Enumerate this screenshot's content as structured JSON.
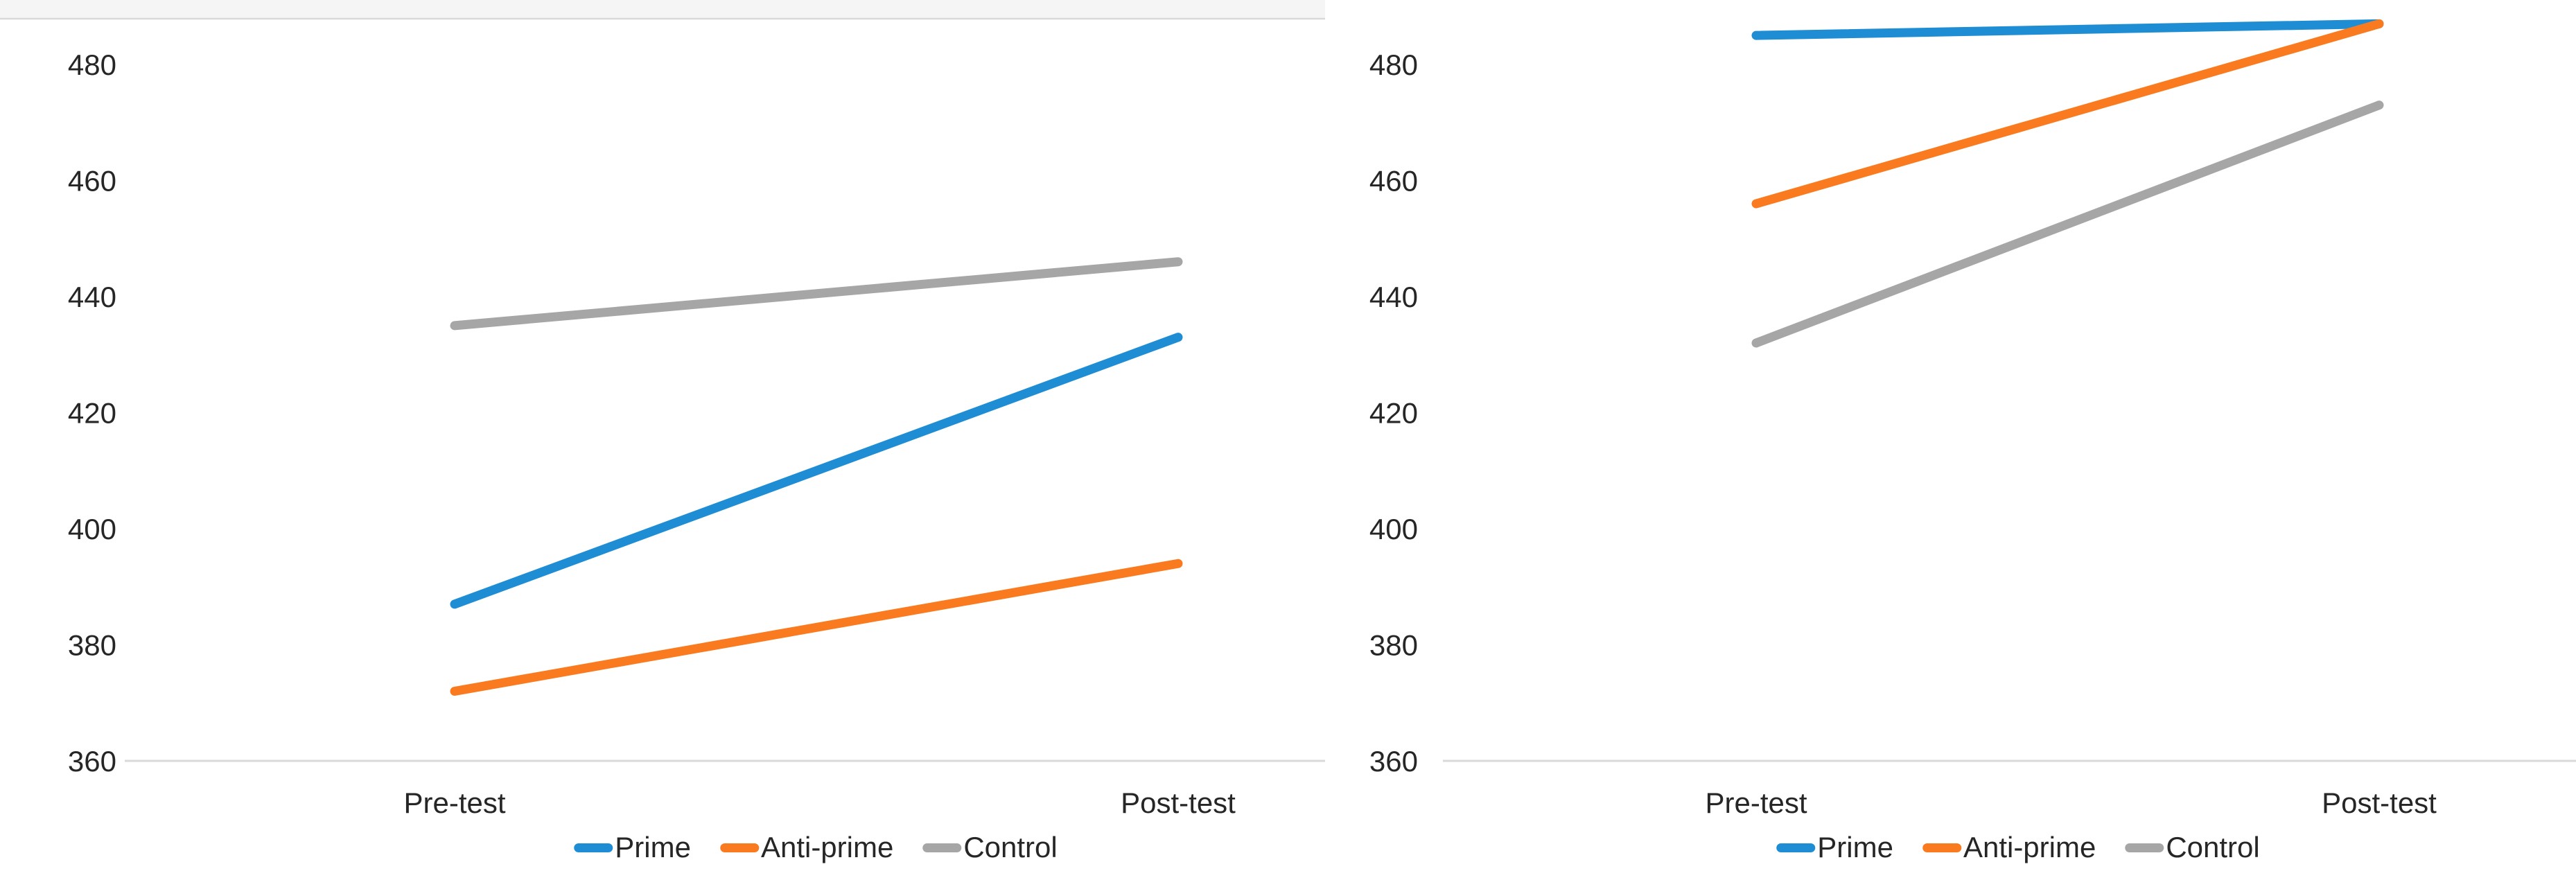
{
  "page": {
    "background": "#ffffff",
    "text_color": "#262626",
    "axis_color": "#D9D9D9",
    "top_band_fill": "#f5f5f5",
    "top_band_edge": "#d9d9d9"
  },
  "chart_data": [
    {
      "type": "line",
      "title": "",
      "categories": [
        "Pre-test",
        "Post-test"
      ],
      "series": [
        {
          "name": "Prime",
          "color": "#1E8DD4",
          "values": [
            387,
            433
          ]
        },
        {
          "name": "Anti-prime",
          "color": "#FA7B1F",
          "values": [
            372,
            394
          ]
        },
        {
          "name": "Control",
          "color": "#A6A6A6",
          "values": [
            435,
            446
          ]
        }
      ],
      "ylim": [
        360,
        491
      ],
      "yticks": [
        360,
        380,
        400,
        420,
        440,
        460,
        480
      ],
      "grid": false,
      "legend_position": "bottom"
    },
    {
      "type": "line",
      "title": "",
      "categories": [
        "Pre-test",
        "Post-test"
      ],
      "series": [
        {
          "name": "Prime",
          "color": "#1E8DD4",
          "values": [
            485,
            487
          ]
        },
        {
          "name": "Anti-prime",
          "color": "#FA7B1F",
          "values": [
            456,
            487
          ]
        },
        {
          "name": "Control",
          "color": "#A6A6A6",
          "values": [
            432,
            473
          ]
        }
      ],
      "ylim": [
        360,
        491
      ],
      "yticks": [
        360,
        380,
        400,
        420,
        440,
        460,
        480
      ],
      "grid": false,
      "legend_position": "bottom"
    }
  ]
}
